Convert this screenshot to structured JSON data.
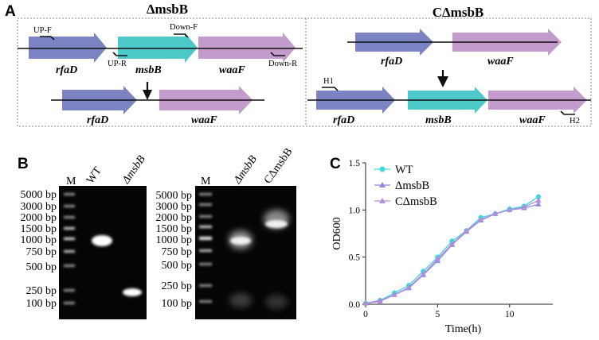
{
  "panel_a": {
    "letter": "A",
    "left_title": "ΔmsbB",
    "right_title": "CΔmsbB",
    "genes": {
      "rfaD": "rfaD",
      "msbB": "msbB",
      "waaF": "waaF"
    },
    "primers": {
      "up_f": "UP-F",
      "up_r": "UP-R",
      "down_f": "Down-F",
      "down_r": "Down-R",
      "h1": "H1",
      "h2": "H2"
    },
    "colors": {
      "rfaD": "#7b83c2",
      "msbB": "#4ec9c9",
      "waaF": "#c39ccd",
      "box_border": "#888888"
    }
  },
  "panel_b": {
    "letter": "B",
    "gel1": {
      "lanes": [
        "M",
        "WT",
        "ΔmsbB"
      ],
      "ladder": [
        "5000 bp",
        "3000 bp",
        "2000 bp",
        "1500 bp",
        "1000 bp",
        "750 bp",
        "500 bp",
        "250 bp",
        "100 bp"
      ]
    },
    "gel2": {
      "lanes": [
        "M",
        "ΔmsbB",
        "CΔmsbB"
      ],
      "ladder": [
        "5000 bp",
        "3000 bp",
        "2000 bp",
        "1500 bp",
        "1000 bp",
        "750 bp",
        "500 bp",
        "250 bp",
        "100 bp"
      ]
    }
  },
  "panel_c": {
    "letter": "C",
    "chart_data": {
      "type": "line",
      "xlabel": "Time(h)",
      "ylabel": "OD600",
      "xlim": [
        0,
        13
      ],
      "ylim": [
        0,
        1.5
      ],
      "xticks": [
        "0",
        "5",
        "10"
      ],
      "yticks": [
        "0.0",
        "0.5",
        "1.0",
        "1.5"
      ],
      "x": [
        0,
        1,
        2,
        3,
        4,
        5,
        6,
        7,
        8,
        9,
        10,
        11,
        12
      ],
      "series": [
        {
          "name": "WT",
          "color": "#3fd6e0",
          "marker": "circle",
          "values": [
            0.01,
            0.04,
            0.12,
            0.2,
            0.35,
            0.5,
            0.67,
            0.78,
            0.92,
            0.96,
            1.01,
            1.04,
            1.14
          ]
        },
        {
          "name": "ΔmsbB",
          "color": "#8d8ee0",
          "marker": "triangle",
          "values": [
            0.01,
            0.04,
            0.1,
            0.17,
            0.31,
            0.46,
            0.63,
            0.77,
            0.89,
            0.96,
            1.0,
            1.02,
            1.06
          ]
        },
        {
          "name": "CΔmsbB",
          "color": "#b48cd9",
          "marker": "triangle",
          "values": [
            0.01,
            0.03,
            0.1,
            0.18,
            0.32,
            0.48,
            0.64,
            0.78,
            0.9,
            0.96,
            1.0,
            1.03,
            1.1
          ]
        }
      ],
      "legend_position": "top-left"
    }
  }
}
